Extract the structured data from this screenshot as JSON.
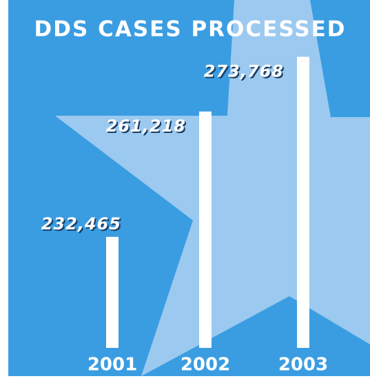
{
  "chart_data": {
    "type": "bar",
    "title": "DDS CASES PROCESSED",
    "categories": [
      "2001",
      "2002",
      "2003"
    ],
    "values": [
      232465,
      261218,
      273768
    ],
    "value_labels": [
      "232,465",
      "261,218",
      "273,768"
    ],
    "color": "#ffffff",
    "ylim": [
      207000,
      280000
    ]
  }
}
